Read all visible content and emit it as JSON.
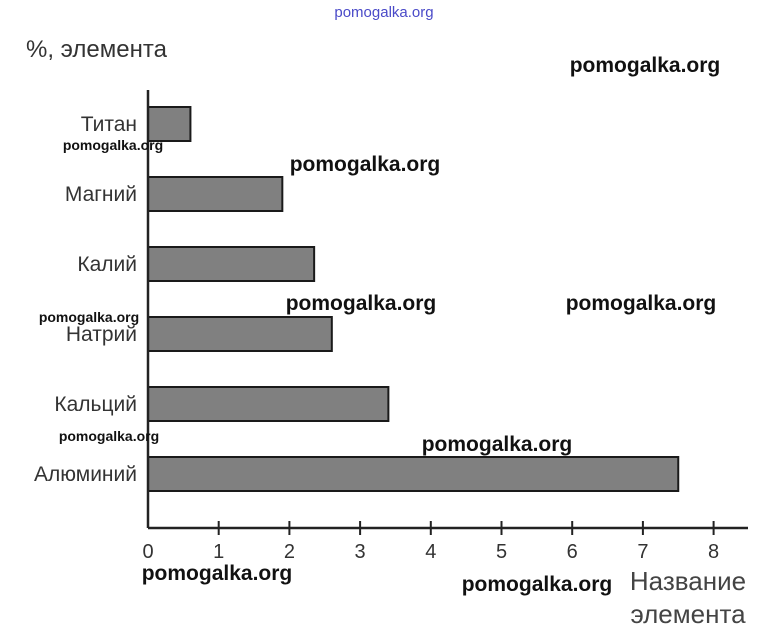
{
  "chart_data": {
    "type": "bar",
    "orientation": "horizontal",
    "categories": [
      "Титан",
      "Магний",
      "Калий",
      "Натрий",
      "Кальций",
      "Алюминий"
    ],
    "values": [
      0.6,
      1.9,
      2.35,
      2.6,
      3.4,
      7.5
    ],
    "ylabel": "%, элемента",
    "xlabel_lines": [
      "Название",
      "элемента"
    ],
    "xlim": [
      0,
      8
    ],
    "xticks": [
      "0",
      "1",
      "2",
      "3",
      "4",
      "5",
      "6",
      "7",
      "8"
    ],
    "bar_color": "#808080",
    "grid": false
  },
  "watermarks": {
    "top": "pomogalka.org",
    "main": "pomogalka.org"
  }
}
